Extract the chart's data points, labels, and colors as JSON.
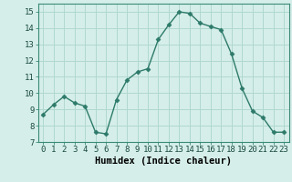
{
  "x": [
    0,
    1,
    2,
    3,
    4,
    5,
    6,
    7,
    8,
    9,
    10,
    11,
    12,
    13,
    14,
    15,
    16,
    17,
    18,
    19,
    20,
    21,
    22,
    23
  ],
  "y": [
    8.7,
    9.3,
    9.8,
    9.4,
    9.2,
    7.6,
    7.5,
    9.6,
    10.8,
    11.3,
    11.5,
    13.3,
    14.2,
    15.0,
    14.9,
    14.3,
    14.1,
    13.9,
    12.4,
    10.3,
    8.9,
    8.5,
    7.6,
    7.6
  ],
  "line_color": "#2d7a6a",
  "marker_color": "#2d7a6a",
  "bg_color": "#d5eee9",
  "grid_color": "#b0d8d0",
  "xlabel": "Humidex (Indice chaleur)",
  "xlim": [
    -0.5,
    23.5
  ],
  "ylim": [
    7,
    15.5
  ],
  "yticks": [
    7,
    8,
    9,
    10,
    11,
    12,
    13,
    14,
    15
  ],
  "xticks": [
    0,
    1,
    2,
    3,
    4,
    5,
    6,
    7,
    8,
    9,
    10,
    11,
    12,
    13,
    14,
    15,
    16,
    17,
    18,
    19,
    20,
    21,
    22,
    23
  ],
  "tick_fontsize": 6.5,
  "label_fontsize": 7.5
}
